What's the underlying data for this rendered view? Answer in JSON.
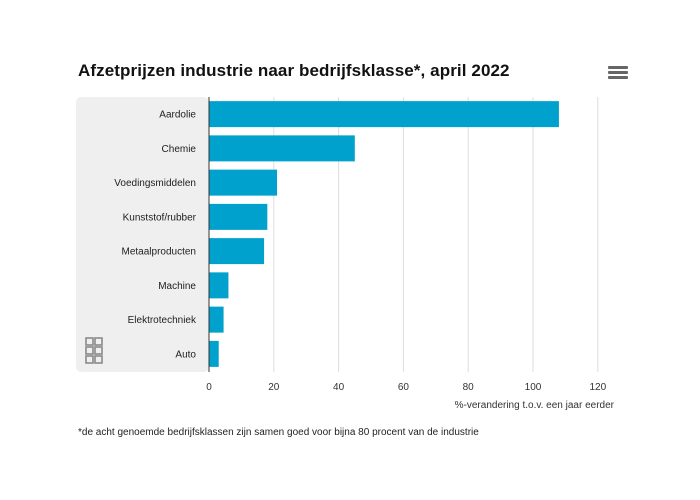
{
  "title": "Afzetprijzen industrie naar bedrijfsklasse*, april 2022",
  "menu_icon": "hamburger-menu-icon",
  "logo_icon": "cbs-logo-icon",
  "footnote": "*de acht genoemde bedrijfsklassen zijn samen goed voor bijna 80 procent van de industrie",
  "colors": {
    "bar": "#00a1cd",
    "panel": "#efefef",
    "grid": "#dddddd",
    "axis": "#333333"
  },
  "chart_data": {
    "type": "bar",
    "orientation": "horizontal",
    "categories": [
      "Aardolie",
      "Chemie",
      "Voedingsmiddelen",
      "Kunststof/rubber",
      "Metaalproducten",
      "Machine",
      "Elektrotechniek",
      "Auto"
    ],
    "values": [
      108,
      45,
      21,
      18,
      17,
      6,
      4.5,
      3
    ],
    "xlabel": "%-verandering t.o.v. een jaar eerder",
    "xlim": [
      0,
      120
    ],
    "xticks": [
      "0",
      "20",
      "40",
      "60",
      "80",
      "100",
      "120"
    ],
    "grid": true,
    "legend": "none"
  }
}
